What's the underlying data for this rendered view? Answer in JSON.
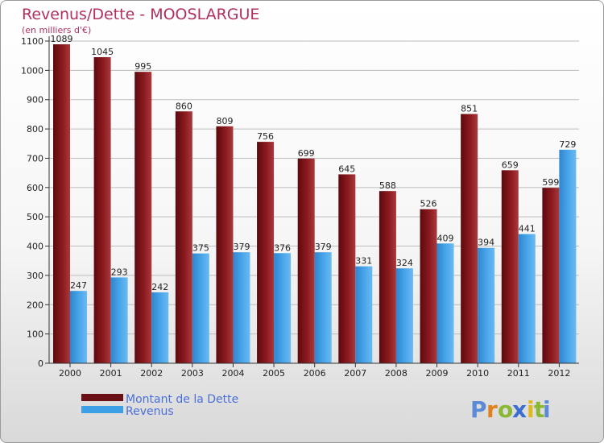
{
  "chart_data": {
    "type": "bar",
    "title": "Revenus/Dette - MOOSLARGUE",
    "subtitle": "(en milliers d'€)",
    "categories": [
      "2000",
      "2001",
      "2002",
      "2003",
      "2004",
      "2005",
      "2006",
      "2007",
      "2008",
      "2009",
      "2010",
      "2011",
      "2012"
    ],
    "series": [
      {
        "name": "Montant de la Dette",
        "color": "#8b1a1f",
        "values": [
          1089,
          1045,
          995,
          860,
          809,
          756,
          699,
          645,
          588,
          526,
          851,
          659,
          599
        ]
      },
      {
        "name": "Revenus",
        "color": "#3d9fe6",
        "values": [
          247,
          293,
          242,
          375,
          379,
          376,
          379,
          331,
          324,
          409,
          394,
          441,
          729
        ]
      }
    ],
    "ylim": [
      0,
      1100
    ],
    "yticks": [
      0,
      100,
      200,
      300,
      400,
      500,
      600,
      700,
      800,
      900,
      1000,
      1100
    ],
    "grid": true,
    "legend_position": "bottom-left"
  },
  "logo": {
    "text": "Proxiti",
    "letters": [
      {
        "ch": "P",
        "color": "#5b8bd6"
      },
      {
        "ch": "r",
        "color": "#e0801f"
      },
      {
        "ch": "o",
        "color": "#8ab833"
      },
      {
        "ch": "x",
        "color": "#3a6fd0"
      },
      {
        "ch": "i",
        "color": "#e0b81f"
      },
      {
        "ch": "t",
        "color": "#8ab833"
      },
      {
        "ch": "i",
        "color": "#5b8bd6"
      }
    ]
  }
}
